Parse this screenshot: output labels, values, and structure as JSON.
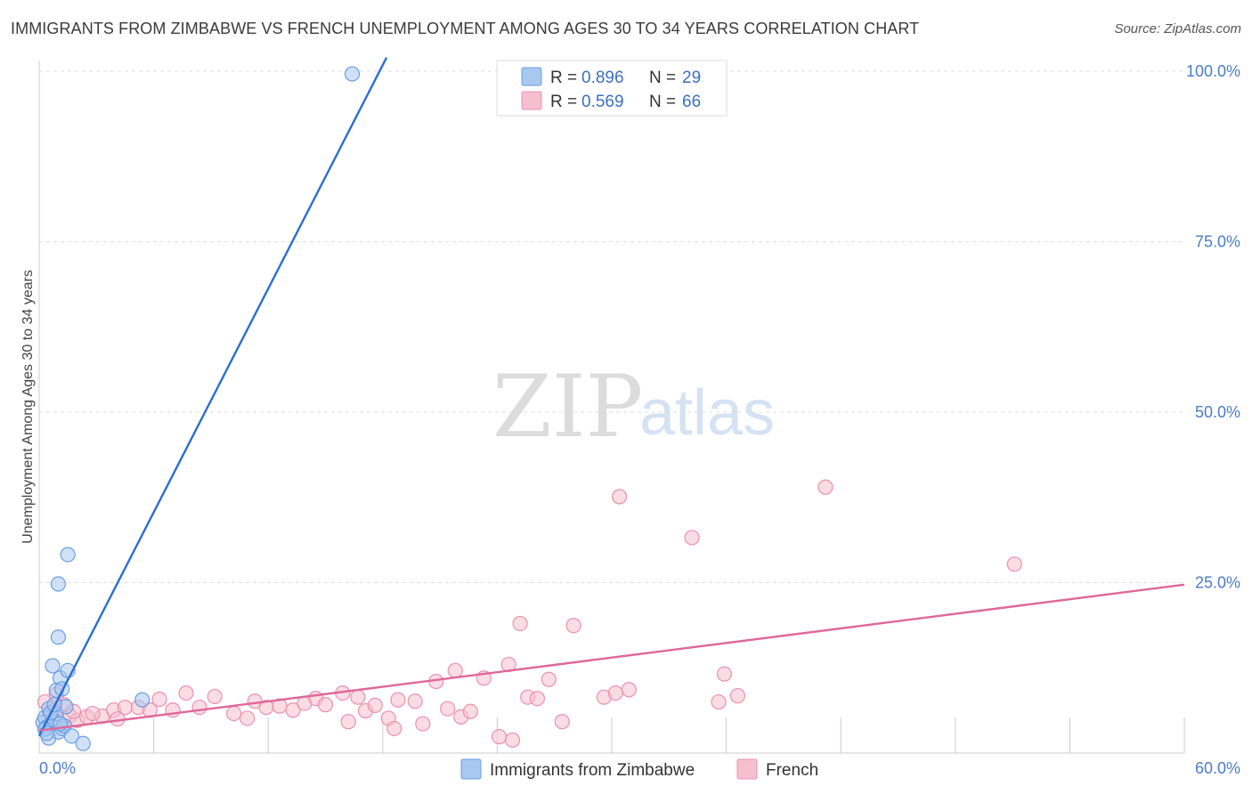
{
  "title": "IMMIGRANTS FROM ZIMBABWE VS FRENCH UNEMPLOYMENT AMONG AGES 30 TO 34 YEARS CORRELATION CHART",
  "source": "Source: ZipAtlas.com",
  "watermark": {
    "zip": "ZIP",
    "atlas": "atlas"
  },
  "colors": {
    "blue_fill": "#a9c8f0",
    "blue_stroke": "#6a9ee0",
    "blue_line": "#2b6fcf",
    "pink_fill": "#f6bfd0",
    "pink_stroke": "#eb90ad",
    "pink_line": "#e0679a",
    "grid": "#dddddd",
    "tick_text": "#4a7cc7"
  },
  "chart_data": {
    "type": "scatter",
    "ylabel": "Unemployment Among Ages 30 to 34 years",
    "xlim": [
      0,
      60
    ],
    "ylim": [
      0,
      100
    ],
    "y_ticks": [
      {
        "value": 25,
        "label": "25.0%"
      },
      {
        "value": 50,
        "label": "50.0%"
      },
      {
        "value": 75,
        "label": "75.0%"
      },
      {
        "value": 100,
        "label": "100.0%"
      }
    ],
    "x_ticks": [
      {
        "value": 0,
        "label": "0.0%"
      },
      {
        "value": 60,
        "label": "60.0%"
      }
    ],
    "x_minor": [
      0,
      6,
      12,
      18,
      24,
      30,
      36,
      42,
      48,
      54,
      60
    ],
    "legend": [
      {
        "r_label": "R =",
        "r": "0.896",
        "n_label": "N =",
        "n": "29"
      },
      {
        "r_label": "R =",
        "r": "0.569",
        "n_label": "N =",
        "n": "66"
      }
    ],
    "series": [
      {
        "name": "Immigrants from Zimbabwe",
        "color": "blue",
        "trend": [
          [
            0.0,
            2.5
          ],
          [
            18.2,
            102
          ]
        ],
        "points": [
          [
            0.2,
            4.5
          ],
          [
            0.3,
            5.2
          ],
          [
            0.4,
            3.8
          ],
          [
            0.5,
            6.5
          ],
          [
            0.5,
            2.2
          ],
          [
            0.6,
            4.2
          ],
          [
            0.7,
            12.8
          ],
          [
            0.8,
            4.6
          ],
          [
            0.9,
            9.2
          ],
          [
            0.9,
            5.8
          ],
          [
            1.0,
            3.1
          ],
          [
            1.0,
            17.0
          ],
          [
            1.0,
            24.8
          ],
          [
            1.1,
            11.0
          ],
          [
            1.2,
            9.4
          ],
          [
            1.2,
            3.6
          ],
          [
            1.3,
            4.0
          ],
          [
            1.4,
            6.8
          ],
          [
            1.5,
            12.1
          ],
          [
            1.5,
            29.1
          ],
          [
            1.7,
            2.5
          ],
          [
            2.3,
            1.4
          ],
          [
            5.4,
            7.8
          ],
          [
            16.4,
            99.6
          ],
          [
            0.3,
            3.5
          ],
          [
            0.6,
            5.9
          ],
          [
            0.8,
            7.1
          ],
          [
            1.1,
            4.3
          ],
          [
            0.4,
            2.9
          ]
        ]
      },
      {
        "name": "French",
        "color": "pink",
        "trend": [
          [
            0.0,
            3.3
          ],
          [
            60.0,
            24.7
          ]
        ],
        "points": [
          [
            0.3,
            7.5
          ],
          [
            0.5,
            5.2
          ],
          [
            0.8,
            6.3
          ],
          [
            1.0,
            4.6
          ],
          [
            1.3,
            7.1
          ],
          [
            1.6,
            5.5
          ],
          [
            2.0,
            4.8
          ],
          [
            2.5,
            5.3
          ],
          [
            3.3,
            5.4
          ],
          [
            3.9,
            6.3
          ],
          [
            4.5,
            6.7
          ],
          [
            5.2,
            6.7
          ],
          [
            5.8,
            6.3
          ],
          [
            6.3,
            7.9
          ],
          [
            7.0,
            6.3
          ],
          [
            7.7,
            8.8
          ],
          [
            8.4,
            6.7
          ],
          [
            9.2,
            8.3
          ],
          [
            10.2,
            5.8
          ],
          [
            10.9,
            5.1
          ],
          [
            11.3,
            7.6
          ],
          [
            11.9,
            6.7
          ],
          [
            12.6,
            6.9
          ],
          [
            13.3,
            6.3
          ],
          [
            13.9,
            7.3
          ],
          [
            14.5,
            8.0
          ],
          [
            15.0,
            7.1
          ],
          [
            15.9,
            8.8
          ],
          [
            16.2,
            4.6
          ],
          [
            16.7,
            8.2
          ],
          [
            17.1,
            6.2
          ],
          [
            17.6,
            7.0
          ],
          [
            18.3,
            5.1
          ],
          [
            18.6,
            3.6
          ],
          [
            18.8,
            7.8
          ],
          [
            19.7,
            7.6
          ],
          [
            20.1,
            4.3
          ],
          [
            20.8,
            10.5
          ],
          [
            21.4,
            6.5
          ],
          [
            21.8,
            12.1
          ],
          [
            22.1,
            5.3
          ],
          [
            22.6,
            6.1
          ],
          [
            23.3,
            11.0
          ],
          [
            24.1,
            2.4
          ],
          [
            24.6,
            13.0
          ],
          [
            24.8,
            1.9
          ],
          [
            25.2,
            19.0
          ],
          [
            25.6,
            8.2
          ],
          [
            26.1,
            8.0
          ],
          [
            26.7,
            10.8
          ],
          [
            27.4,
            4.6
          ],
          [
            28.0,
            18.7
          ],
          [
            29.6,
            8.2
          ],
          [
            30.2,
            8.8
          ],
          [
            30.4,
            37.6
          ],
          [
            30.9,
            9.3
          ],
          [
            34.2,
            31.6
          ],
          [
            35.6,
            7.5
          ],
          [
            35.9,
            11.6
          ],
          [
            36.6,
            8.4
          ],
          [
            41.2,
            39.0
          ],
          [
            51.1,
            27.7
          ],
          [
            2.8,
            5.8
          ],
          [
            1.8,
            6.1
          ],
          [
            4.1,
            5.0
          ],
          [
            0.9,
            8.6
          ]
        ]
      }
    ]
  }
}
